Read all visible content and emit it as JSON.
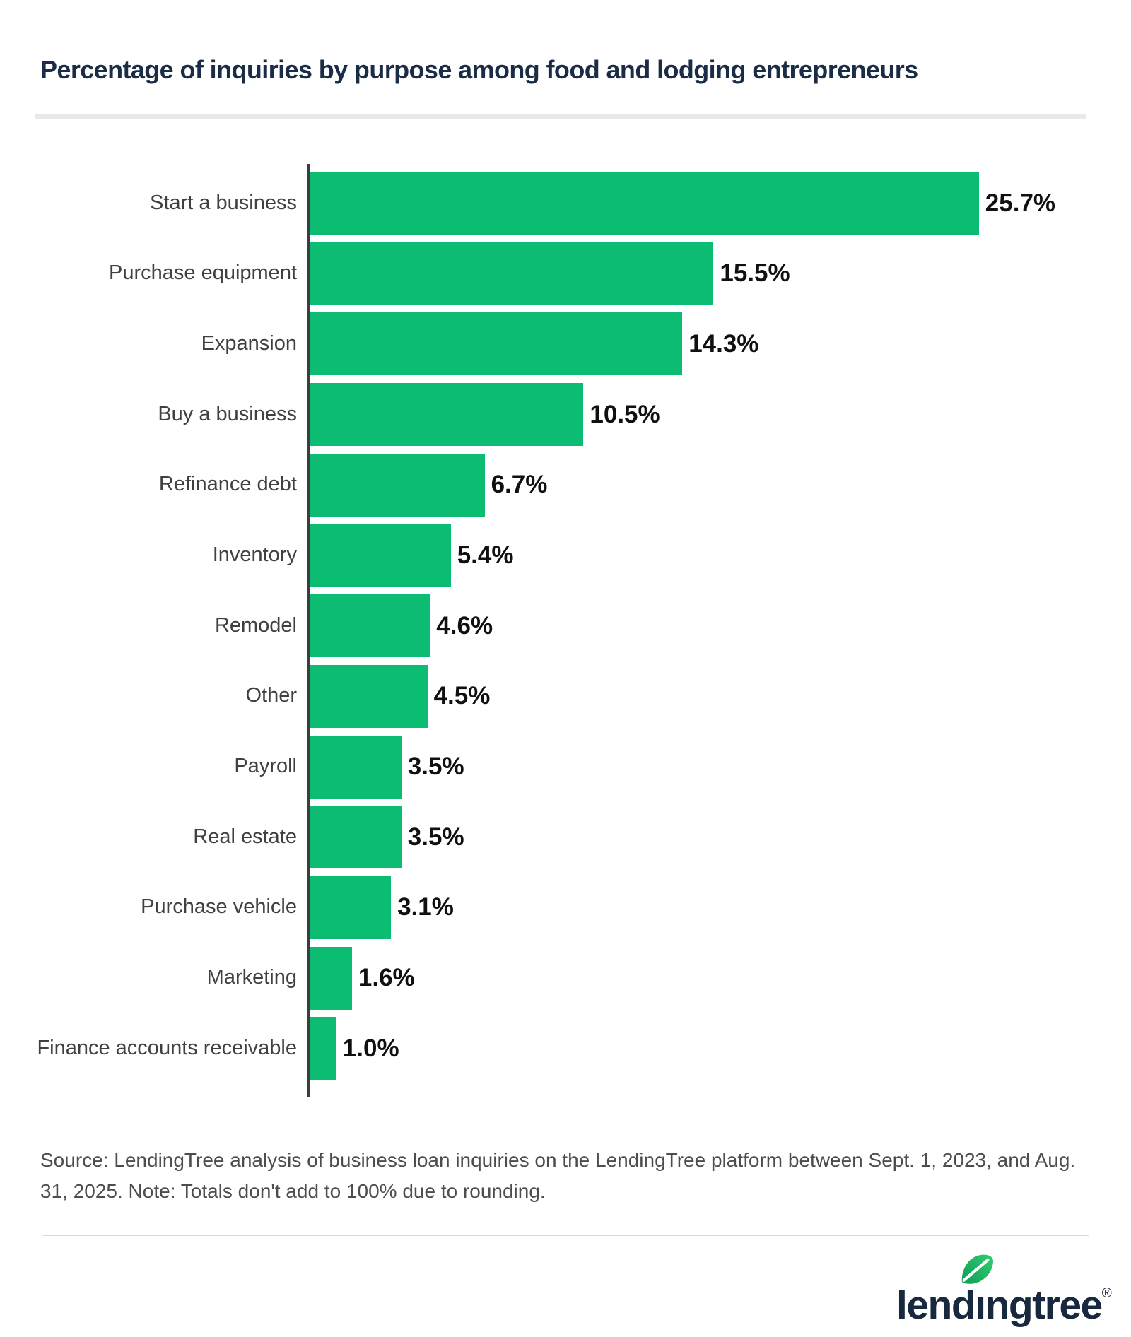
{
  "title": "Percentage of inquiries by purpose among food and lodging entrepreneurs",
  "chart_data": {
    "type": "bar",
    "orientation": "horizontal",
    "title": "Percentage of inquiries by purpose among food and lodging entrepreneurs",
    "categories": [
      "Start a business",
      "Purchase equipment",
      "Expansion",
      "Buy a business",
      "Refinance debt",
      "Inventory",
      "Remodel",
      "Other",
      "Payroll",
      "Real estate",
      "Purchase vehicle",
      "Marketing",
      "Finance accounts receivable"
    ],
    "values": [
      25.7,
      15.5,
      14.3,
      10.5,
      6.7,
      5.4,
      4.6,
      4.5,
      3.5,
      3.5,
      3.1,
      1.6,
      1.0
    ],
    "labels": [
      "25.7%",
      "15.5%",
      "14.3%",
      "10.5%",
      "6.7%",
      "5.4%",
      "4.6%",
      "4.5%",
      "3.5%",
      "3.5%",
      "3.1%",
      "1.6%",
      "1.0%"
    ],
    "xlim": [
      0,
      26
    ],
    "grid": false,
    "legend": false,
    "bar_color": "#0CBC72",
    "axis_color": "#3B3D3F"
  },
  "source_note": "Source: LendingTree analysis of business loan inquiries on the LendingTree platform between Sept. 1, 2023, and Aug. 31, 2025. Note: Totals don't add to 100% due to rounding.",
  "logo": {
    "pre": "lend",
    "dotless_i": "ı",
    "post": "ngtree",
    "trademark": "®",
    "navy": "#18293F",
    "leaf_green_light": "#33CD70",
    "leaf_green_dark": "#0E9D55"
  }
}
